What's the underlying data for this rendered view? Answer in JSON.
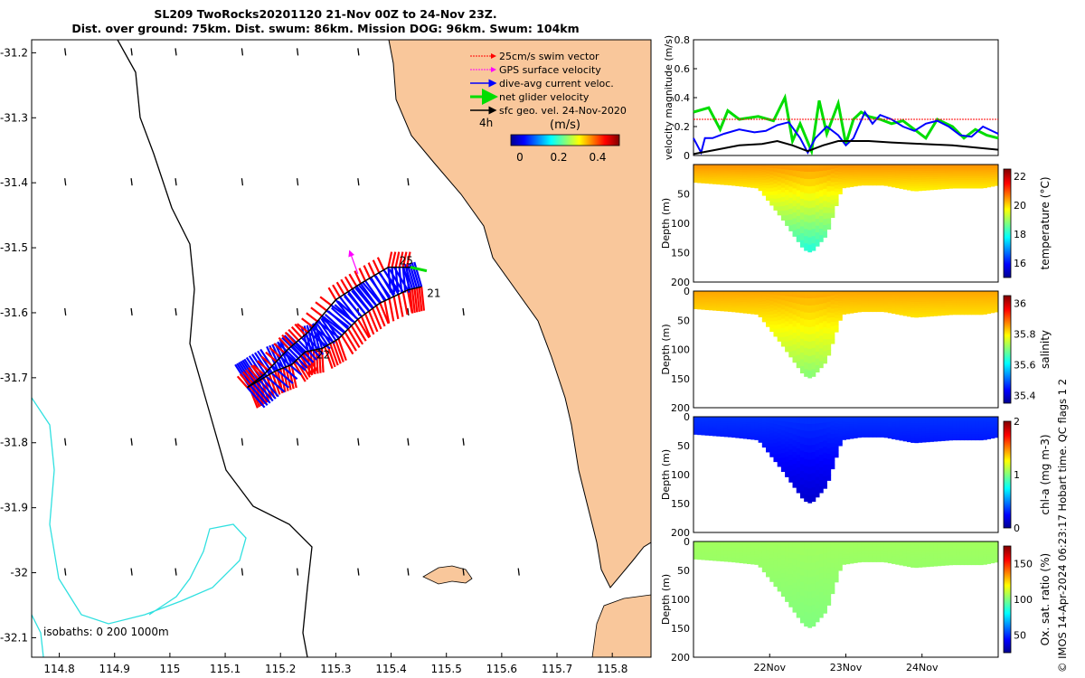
{
  "title": {
    "line1": "SL209 TwoRocks20201120 21-Nov 00Z to 24-Nov 23Z.",
    "line2": "Dist. over ground: 75km. Dist. swum: 86km. Mission DOG: 96km. Swum: 104km"
  },
  "credit": "© IMOS 14-Apr-2024 06:23:17 Hobart time. QC flags 1 2",
  "colors": {
    "land": "#f9c79b",
    "ocean": "#ffffff",
    "isobath_200": "#000000",
    "isobath_1000": "#30e0e0",
    "swim": "#ff0000",
    "gps": "#ff00ff",
    "dive_avg": "#0000ff",
    "net": "#00dd00",
    "sfc_geo": "#000000"
  },
  "chart_data": [
    {
      "type": "map",
      "xticks": [
        "114.8",
        "114.9",
        "115",
        "115.1",
        "115.2",
        "115.3",
        "115.4",
        "115.5",
        "115.6",
        "115.7",
        "115.8"
      ],
      "yticks": [
        "-31.2",
        "-31.3",
        "-31.4",
        "-31.5",
        "-31.6",
        "-31.7",
        "-31.8",
        "-31.9",
        "-32",
        "-32.1"
      ],
      "xlim": [
        114.75,
        115.87
      ],
      "ylim": [
        -32.13,
        -31.18
      ],
      "legend": [
        {
          "label": "25cm/s swim vector",
          "color_key": "swim"
        },
        {
          "label": "GPS surface velocity",
          "color_key": "gps"
        },
        {
          "label": "dive-avg current veloc.",
          "color_key": "dive_avg"
        },
        {
          "label": "net glider velocity",
          "color_key": "net"
        },
        {
          "label": "sfc geo. vel. 24-Nov-2020",
          "color_key": "sfc_geo"
        }
      ],
      "colorbar": {
        "label": "(m/s)",
        "ticks": [
          "0",
          "0.2",
          "0.4"
        ],
        "range": [
          0,
          0.5
        ]
      },
      "label_4h": "4h",
      "isobath_note": "isobaths: 0   200  1000m",
      "day_labels": [
        {
          "text": "21",
          "lon": 115.46,
          "lat": -31.57
        },
        {
          "text": "22",
          "lon": 115.26,
          "lat": -31.665
        },
        {
          "text": "25",
          "lon": 115.41,
          "lat": -31.52
        }
      ],
      "track": [
        [
          115.455,
          -31.56
        ],
        [
          115.43,
          -31.565
        ],
        [
          115.38,
          -31.585
        ],
        [
          115.34,
          -31.61
        ],
        [
          115.305,
          -31.64
        ],
        [
          115.275,
          -31.655
        ],
        [
          115.245,
          -31.66
        ],
        [
          115.22,
          -31.68
        ],
        [
          115.19,
          -31.69
        ],
        [
          115.16,
          -31.705
        ],
        [
          115.14,
          -31.715
        ],
        [
          115.17,
          -31.695
        ],
        [
          115.215,
          -31.655
        ],
        [
          115.25,
          -31.63
        ],
        [
          115.3,
          -31.58
        ],
        [
          115.345,
          -31.555
        ],
        [
          115.395,
          -31.53
        ],
        [
          115.435,
          -31.53
        ]
      ]
    },
    {
      "type": "line",
      "ylabel": "velocity magnitude (m/s)",
      "ylim": [
        0,
        0.8
      ],
      "yticks": [
        "0",
        "0.2",
        "0.4",
        "0.6",
        "0.8"
      ],
      "x_day_range": [
        21.0,
        25.0
      ],
      "series": [
        {
          "color_key": "net",
          "x": [
            21.0,
            21.2,
            21.35,
            21.45,
            21.6,
            21.85,
            22.05,
            22.2,
            22.3,
            22.4,
            22.55,
            22.65,
            22.75,
            22.9,
            23.0,
            23.1,
            23.2,
            23.3,
            23.45,
            23.6,
            23.75,
            23.9,
            24.05,
            24.2,
            24.4,
            24.55,
            24.7,
            24.85,
            25.0
          ],
          "y": [
            0.3,
            0.33,
            0.18,
            0.31,
            0.25,
            0.27,
            0.24,
            0.4,
            0.1,
            0.22,
            0.03,
            0.38,
            0.15,
            0.36,
            0.08,
            0.25,
            0.3,
            0.27,
            0.25,
            0.22,
            0.24,
            0.18,
            0.12,
            0.25,
            0.2,
            0.12,
            0.18,
            0.14,
            0.12
          ]
        },
        {
          "color_key": "dive_avg",
          "x": [
            21.0,
            21.1,
            21.15,
            21.25,
            21.4,
            21.6,
            21.8,
            21.95,
            22.1,
            22.25,
            22.4,
            22.5,
            22.6,
            22.75,
            22.9,
            23.0,
            23.1,
            23.25,
            23.35,
            23.45,
            23.6,
            23.75,
            23.9,
            24.05,
            24.2,
            24.35,
            24.5,
            24.65,
            24.8,
            25.0
          ],
          "y": [
            0.12,
            0.02,
            0.12,
            0.12,
            0.15,
            0.18,
            0.16,
            0.17,
            0.21,
            0.23,
            0.12,
            0.02,
            0.12,
            0.2,
            0.14,
            0.07,
            0.12,
            0.3,
            0.22,
            0.28,
            0.25,
            0.2,
            0.17,
            0.22,
            0.24,
            0.2,
            0.14,
            0.13,
            0.2,
            0.15
          ]
        },
        {
          "color_key": "sfc_geo",
          "x": [
            21.0,
            21.3,
            21.6,
            21.9,
            22.1,
            22.3,
            22.5,
            22.7,
            22.9,
            23.1,
            23.3,
            23.6,
            24.0,
            24.4,
            24.8,
            25.0
          ],
          "y": [
            0.01,
            0.04,
            0.07,
            0.08,
            0.1,
            0.07,
            0.03,
            0.07,
            0.1,
            0.1,
            0.1,
            0.09,
            0.08,
            0.07,
            0.05,
            0.04
          ]
        },
        {
          "color_key": "swim",
          "x": [
            21.0,
            25.0
          ],
          "y": [
            0.25,
            0.25
          ]
        }
      ]
    },
    {
      "type": "heatmap",
      "ylabel": "Depth (m)",
      "variable": "temperature (°C)",
      "ylim": [
        200,
        0
      ],
      "yticks": [
        "50",
        "100",
        "150",
        "200"
      ],
      "clim": [
        15,
        22.5
      ],
      "cbar_ticks": [
        "22",
        "20",
        "18",
        "16"
      ],
      "profile_depth": {
        "x_day": [
          21.0,
          21.5,
          21.85,
          22.15,
          22.45,
          22.55,
          22.75,
          22.95,
          23.2,
          23.5,
          23.9,
          24.4,
          24.8,
          25.0
        ],
        "max_depth_m": [
          30,
          35,
          40,
          90,
          145,
          150,
          120,
          40,
          35,
          35,
          45,
          40,
          40,
          35
        ]
      },
      "value_surface": 20.5,
      "value_deep": 18.0
    },
    {
      "type": "heatmap",
      "ylabel": "Depth (m)",
      "variable": "salinity",
      "ylim": [
        200,
        0
      ],
      "yticks": [
        "0",
        "50",
        "100",
        "150",
        "200"
      ],
      "clim": [
        35.35,
        36.05
      ],
      "cbar_ticks": [
        "36",
        "35.8",
        "35.6",
        "35.4"
      ],
      "value_surface": 35.85,
      "value_deep": 35.7
    },
    {
      "type": "heatmap",
      "ylabel": "Depth (m)",
      "variable": "chl-a (mg m-3)",
      "ylim": [
        200,
        0
      ],
      "yticks": [
        "0",
        "50",
        "100",
        "150",
        "200"
      ],
      "clim": [
        0,
        2
      ],
      "cbar_ticks": [
        "2",
        "1",
        "0"
      ],
      "value_surface": 0.35,
      "value_deep": 0.15
    },
    {
      "type": "heatmap",
      "ylabel": "Depth (m)",
      "variable": "Ox. sat. ratio (%)",
      "ylim": [
        200,
        0
      ],
      "yticks": [
        "0",
        "50",
        "100",
        "150",
        "200"
      ],
      "clim": [
        25,
        175
      ],
      "cbar_ticks": [
        "150",
        "100",
        "50"
      ],
      "value_surface": 105,
      "value_deep": 100
    }
  ],
  "time_axis": {
    "ticks": [
      "22Nov",
      "23Nov",
      "24Nov"
    ],
    "tick_days": [
      22,
      23,
      24
    ],
    "range_days": [
      21.0,
      25.0
    ]
  }
}
